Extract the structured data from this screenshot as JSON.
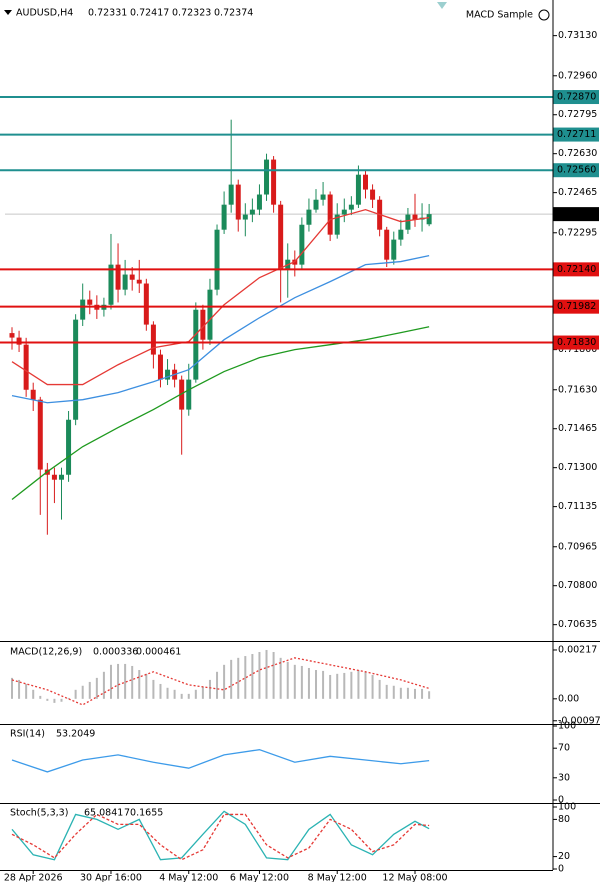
{
  "header": {
    "expert": "MACD Sample"
  },
  "chart_data": [
    {
      "type": "candlestick",
      "title": "AUDUSD,H4",
      "categories": [
        null,
        null,
        null,
        "28 Apr 2026",
        null,
        null,
        null,
        null,
        null,
        null,
        null,
        null,
        null,
        null,
        "30 Apr 16:00",
        null,
        null,
        null,
        null,
        null,
        null,
        null,
        null,
        null,
        null,
        "4 May 12:00",
        null,
        null,
        null,
        null,
        null,
        null,
        null,
        null,
        null,
        "6 May 12:00",
        null,
        null,
        null,
        null,
        null,
        null,
        null,
        null,
        null,
        null,
        "8 May 12:00",
        null,
        null,
        null,
        null,
        null,
        null,
        null,
        null,
        null,
        null,
        "12 May 08:00",
        null,
        null
      ],
      "open": [
        0.7187,
        0.71851,
        0.71821,
        0.7163,
        0.71588,
        0.71292,
        0.7127,
        0.71249,
        0.7127,
        0.71503,
        0.71927,
        0.72012,
        0.7199,
        0.71969,
        0.7199,
        0.7216,
        0.72054,
        0.72118,
        0.72096,
        0.7208,
        0.71906,
        0.71779,
        0.71673,
        0.71715,
        0.71673,
        0.71546,
        0.71673,
        0.71969,
        0.71842,
        0.72054,
        0.72308,
        0.72414,
        0.72499,
        0.72351,
        0.72372,
        0.72393,
        0.72457,
        0.72605,
        0.72414,
        0.72139,
        0.72181,
        0.7216,
        0.72329,
        0.72393,
        0.72435,
        0.72457,
        0.72287,
        0.72372,
        0.72393,
        0.72414,
        0.72541,
        0.72478,
        0.72435,
        0.72308,
        0.72181,
        0.72266,
        0.72308,
        0.72372,
        0.72351,
        0.72331
      ],
      "high": [
        0.71895,
        0.7188,
        0.7185,
        0.7166,
        0.716,
        0.7132,
        0.713,
        0.713,
        0.7154,
        0.7195,
        0.7208,
        0.7205,
        0.7203,
        0.7202,
        0.7229,
        0.7225,
        0.7218,
        0.7215,
        0.7218,
        0.721,
        0.7192,
        0.718,
        0.7176,
        0.7174,
        0.7169,
        0.7174,
        0.72,
        0.7199,
        0.721,
        0.7233,
        0.7247,
        0.72774,
        0.7252,
        0.7242,
        0.7244,
        0.725,
        0.7263,
        0.7262,
        0.7243,
        0.7225,
        0.7222,
        0.7236,
        0.7244,
        0.7248,
        0.7251,
        0.7247,
        0.7242,
        0.7244,
        0.7245,
        0.7258,
        0.7256,
        0.725,
        0.7245,
        0.7232,
        0.723,
        0.7235,
        0.724,
        0.7246,
        0.7242,
        0.72417
      ],
      "low": [
        0.718,
        0.7179,
        0.716,
        0.7154,
        0.711,
        0.71016,
        0.7115,
        0.7108,
        0.7124,
        0.7148,
        0.719,
        0.7195,
        0.7193,
        0.7194,
        0.7197,
        0.72,
        0.7203,
        0.7205,
        0.7204,
        0.7188,
        0.7172,
        0.7164,
        0.7165,
        0.7164,
        0.71355,
        0.7152,
        0.7166,
        0.718,
        0.7182,
        0.7203,
        0.7229,
        0.7238,
        0.723,
        0.7228,
        0.7234,
        0.7237,
        0.7243,
        0.7238,
        0.72,
        0.7202,
        0.7211,
        0.7214,
        0.723,
        0.7238,
        0.7241,
        0.7226,
        0.7227,
        0.7234,
        0.7237,
        0.724,
        0.7244,
        0.724,
        0.7228,
        0.7215,
        0.7216,
        0.7224,
        0.7229,
        0.7232,
        0.723,
        0.72323
      ],
      "close": [
        0.71851,
        0.71821,
        0.7163,
        0.71588,
        0.71292,
        0.7127,
        0.71249,
        0.7127,
        0.71503,
        0.71927,
        0.72012,
        0.7199,
        0.71969,
        0.7199,
        0.7216,
        0.72054,
        0.72118,
        0.72096,
        0.7208,
        0.71906,
        0.71779,
        0.71673,
        0.71715,
        0.71673,
        0.71546,
        0.71673,
        0.71969,
        0.71842,
        0.72054,
        0.72308,
        0.72414,
        0.72499,
        0.72351,
        0.72372,
        0.72393,
        0.72457,
        0.72605,
        0.72414,
        0.72139,
        0.72181,
        0.7216,
        0.72329,
        0.72393,
        0.72435,
        0.72457,
        0.72287,
        0.72372,
        0.72393,
        0.72414,
        0.72541,
        0.72478,
        0.72435,
        0.72308,
        0.72181,
        0.72266,
        0.72308,
        0.72372,
        0.72351,
        0.72359,
        0.72374
      ],
      "up_color": "#1b8a5a",
      "down_color": "#d81b1b",
      "overlays": [
        {
          "color": "#e53935",
          "x": [
            0,
            5,
            10,
            15,
            20,
            25,
            30,
            35,
            40,
            45,
            50,
            55,
            59
          ],
          "values": [
            0.71749,
            0.71652,
            0.71652,
            0.71736,
            0.71808,
            0.71834,
            0.7199,
            0.72105,
            0.72173,
            0.72351,
            0.72393,
            0.72342,
            0.72359
          ]
        },
        {
          "color": "#3d8fe0",
          "x": [
            0,
            5,
            10,
            15,
            20,
            25,
            30,
            35,
            40,
            45,
            50,
            55,
            59
          ],
          "values": [
            0.71605,
            0.71575,
            0.71588,
            0.71618,
            0.71664,
            0.71715,
            0.71842,
            0.71935,
            0.7202,
            0.72088,
            0.7216,
            0.72173,
            0.72198
          ]
        },
        {
          "color": "#1f9a1f",
          "x": [
            0,
            5,
            10,
            15,
            20,
            25,
            30,
            35,
            40,
            45,
            50,
            55,
            59
          ],
          "values": [
            0.71165,
            0.71283,
            0.71389,
            0.7147,
            0.71546,
            0.7163,
            0.71707,
            0.71766,
            0.718,
            0.71821,
            0.71842,
            0.71872,
            0.71897
          ]
        }
      ],
      "levels": [
        {
          "value": 0.7287,
          "label": "0.72870",
          "color": "#1f8f8f"
        },
        {
          "value": 0.72711,
          "label": "0.72711",
          "color": "#1f8f8f"
        },
        {
          "value": 0.7256,
          "label": "0.72560",
          "color": "#1f8f8f"
        },
        {
          "value": 0.7214,
          "label": "0.72140",
          "color": "#e01010"
        },
        {
          "value": 0.71982,
          "label": "0.71982",
          "color": "#e01010"
        },
        {
          "value": 0.7183,
          "label": "0.71830",
          "color": "#e01010"
        }
      ],
      "ylim": [
        0.7057,
        0.73281
      ],
      "yticks": [
        {
          "value": 0.7313,
          "label": "0.73130"
        },
        {
          "value": 0.7296,
          "label": "0.72960"
        },
        0.72795,
        {
          "value": 0.7263,
          "label": "0.72630"
        },
        0.72465,
        0.72295,
        {
          "value": 0.718,
          "label": "0.71800"
        },
        {
          "value": 0.7163,
          "label": "0.71630"
        },
        0.71465,
        {
          "value": 0.713,
          "label": "0.71300"
        },
        0.71135,
        0.70965,
        {
          "value": 0.708,
          "label": "0.70800"
        },
        0.70635
      ]
    },
    {
      "type": "macd",
      "title": "MACD(12,26,9)",
      "values": [
        0.00093,
        0.00084,
        0.00066,
        0.0004,
        0.00013,
        -9e-05,
        -0.00018,
        -0.00013,
        4e-05,
        0.0004,
        0.00058,
        0.00075,
        0.00093,
        0.0012,
        0.00151,
        0.00155,
        0.00155,
        0.00146,
        0.00128,
        0.00111,
        0.00084,
        0.00066,
        0.00049,
        0.0004,
        0.00022,
        0.00022,
        0.0004,
        0.00053,
        0.00084,
        0.0012,
        0.00151,
        0.00173,
        0.00182,
        0.0019,
        0.00199,
        0.00208,
        0.00217,
        0.00208,
        0.00182,
        0.00164,
        0.00151,
        0.00146,
        0.00137,
        0.00128,
        0.00124,
        0.00106,
        0.00111,
        0.00115,
        0.0012,
        0.00128,
        0.0012,
        0.00106,
        0.00084,
        0.00062,
        0.00058,
        0.00049,
        0.00049,
        0.00044,
        0.00044,
        0.000336
      ],
      "color": "#b8b8b8",
      "signal": {
        "color": "#e53935",
        "x": [
          0,
          5,
          10,
          15,
          20,
          25,
          30,
          35,
          40,
          45,
          50,
          55,
          59
        ],
        "values": [
          0.00084,
          0.0004,
          -0.00027,
          0.00062,
          0.0012,
          0.00062,
          0.0004,
          0.00128,
          0.00182,
          0.00151,
          0.0012,
          0.00084,
          0.000461
        ]
      },
      "ylim": [
        -0.00103,
        0.00248
      ],
      "yticks": [
        0.00217,
        {
          "value": 0,
          "label": "0.00"
        },
        -0.000975
      ]
    },
    {
      "type": "line",
      "title": "RSI(14)",
      "series": [
        {
          "color": "#3d9be9",
          "x": [
            0,
            5,
            10,
            15,
            20,
            25,
            30,
            35,
            40,
            45,
            50,
            55,
            59
          ],
          "values": [
            54,
            38,
            54,
            61,
            51,
            43,
            61,
            68,
            51,
            59,
            54,
            49,
            53.2049
          ]
        }
      ],
      "ylim": [
        0,
        100
      ],
      "yticks": [
        100,
        70,
        30,
        0
      ]
    },
    {
      "type": "line",
      "title": "Stoch(5,3,3)",
      "series": [
        {
          "color": "#2bb3b3",
          "x": [
            0,
            3,
            6,
            9,
            12,
            15,
            18,
            21,
            24,
            27,
            30,
            33,
            36,
            39,
            42,
            45,
            48,
            51,
            54,
            57,
            59
          ],
          "values": [
            64,
            23,
            15,
            88,
            80,
            64,
            80,
            15,
            18,
            56,
            93,
            72,
            18,
            15,
            64,
            88,
            39,
            23,
            56,
            77,
            65.0841
          ]
        },
        {
          "color": "#e53935",
          "dash": true,
          "x": [
            0,
            3,
            6,
            9,
            12,
            15,
            18,
            21,
            24,
            27,
            30,
            33,
            36,
            39,
            42,
            45,
            48,
            51,
            54,
            57,
            59
          ],
          "values": [
            56,
            39,
            18,
            56,
            88,
            72,
            72,
            39,
            15,
            31,
            88,
            88,
            39,
            18,
            34,
            80,
            64,
            28,
            39,
            72,
            70.1655
          ]
        }
      ],
      "ylim": [
        0,
        100
      ],
      "yticks": [
        100,
        80,
        20,
        0
      ]
    }
  ]
}
